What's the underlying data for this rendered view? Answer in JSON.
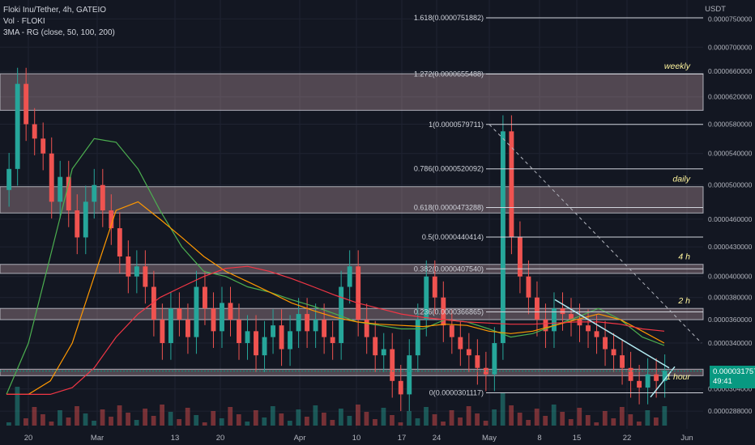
{
  "header": {
    "symbol": "Floki Inu/Tether, 4h, GATEIO",
    "indicator_vol": "Vol · FLOKI",
    "indicator_ma": "3MA - RG (close, 50, 100, 200)"
  },
  "price_axis": {
    "unit": "USDT",
    "current_price": "0.0000317577",
    "countdown": "49:41"
  },
  "colors": {
    "background": "#131722",
    "bull": "#26a69a",
    "bear": "#ef5350",
    "zone": "#f5c6cb",
    "ma50": "#4caf50",
    "ma100": "#ff9800",
    "ma200": "#f23645",
    "trendline": "#b2ebf2",
    "fib": "#d1d4dc",
    "label": "#fff59d",
    "current": "#089981"
  },
  "chart_data": {
    "type": "candlestick",
    "title": "Floki Inu/Tether, 4h, GATEIO",
    "y_unit": "USDT",
    "y_scale": "log",
    "ylim": [
      2.78e-05,
      7.7e-05
    ],
    "y_ticks": [
      "0.0000750000",
      "0.0000700000",
      "0.0000660000",
      "0.0000620000",
      "0.0000580000",
      "0.0000540000",
      "0.0000500000",
      "0.0000460000",
      "0.0000430000",
      "0.0000400000",
      "0.0000380000",
      "0.0000360000",
      "0.0000340000",
      "0.0000304000",
      "0.0000288000"
    ],
    "x_ticks": [
      "20",
      "Mar",
      "13",
      "20",
      "Apr",
      "10",
      "17",
      "24",
      "May",
      "8",
      "15",
      "22",
      "Jun"
    ],
    "fib_levels": [
      {
        "label": "1.618(0.0000751882)",
        "price": 7.51882e-05
      },
      {
        "label": "1.272(0.0000655488)",
        "price": 6.55488e-05
      },
      {
        "label": "1(0.0000579711)",
        "price": 5.79711e-05
      },
      {
        "label": "0.786(0.0000520092)",
        "price": 5.20092e-05
      },
      {
        "label": "0.618(0.0000473288)",
        "price": 4.73288e-05
      },
      {
        "label": "0.5(0.0000440414)",
        "price": 4.40414e-05
      },
      {
        "label": "0.382(0.0000407540)",
        "price": 4.0754e-05
      },
      {
        "label": "0.236(0.0000366865)",
        "price": 3.66865e-05
      },
      {
        "label": "0(0.0000301117)",
        "price": 3.01117e-05
      }
    ],
    "zones": [
      {
        "label": "weekly",
        "from": 6e-05,
        "to": 6.56e-05
      },
      {
        "label": "daily",
        "from": 4.67e-05,
        "to": 4.98e-05
      },
      {
        "label": "4 h",
        "from": 4.03e-05,
        "to": 4.12e-05
      },
      {
        "label": "2 h",
        "from": 3.6e-05,
        "to": 3.7e-05
      },
      {
        "label": "1 hour",
        "from": 3.14e-05,
        "to": 3.19e-05
      }
    ],
    "series": [
      {
        "name": "MA 50",
        "values": [
          3e-05,
          3.4e-05,
          4.2e-05,
          5.2e-05,
          5.6e-05,
          5.55e-05,
          5.2e-05,
          4.7e-05,
          4.3e-05,
          4.05e-05,
          4e-05,
          3.9e-05,
          3.85e-05,
          3.78e-05,
          3.72e-05,
          3.65e-05,
          3.58e-05,
          3.55e-05,
          3.52e-05,
          3.52e-05,
          3.6e-05,
          3.58e-05,
          3.52e-05,
          3.45e-05,
          3.48e-05,
          3.55e-05,
          3.62e-05,
          3.7e-05,
          3.6e-05,
          3.45e-05,
          3.38e-05
        ]
      },
      {
        "name": "MA 100",
        "values": [
          3e-05,
          3e-05,
          3.1e-05,
          3.4e-05,
          4e-05,
          4.7e-05,
          4.8e-05,
          4.6e-05,
          4.4e-05,
          4.2e-05,
          4.05e-05,
          3.95e-05,
          3.85e-05,
          3.75e-05,
          3.68e-05,
          3.62e-05,
          3.58e-05,
          3.56e-05,
          3.55e-05,
          3.54e-05,
          3.56e-05,
          3.55e-05,
          3.5e-05,
          3.48e-05,
          3.5e-05,
          3.55e-05,
          3.6e-05,
          3.65e-05,
          3.6e-05,
          3.5e-05,
          3.4e-05
        ]
      },
      {
        "name": "MA 200",
        "values": [
          3e-05,
          3e-05,
          3e-05,
          3.05e-05,
          3.2e-05,
          3.45e-05,
          3.65e-05,
          3.8e-05,
          3.9e-05,
          4e-05,
          4.08e-05,
          4.1e-05,
          4.05e-05,
          3.98e-05,
          3.9e-05,
          3.82e-05,
          3.75e-05,
          3.7e-05,
          3.65e-05,
          3.62e-05,
          3.6e-05,
          3.58e-05,
          3.57e-05,
          3.56e-05,
          3.56e-05,
          3.57e-05,
          3.58e-05,
          3.58e-05,
          3.56e-05,
          3.52e-05,
          3.5e-05
        ]
      }
    ],
    "candles_close": [
      5.2e-05,
      6.4e-05,
      5.8e-05,
      5.6e-05,
      5.4e-05,
      4.8e-05,
      5.1e-05,
      4.7e-05,
      4.4e-05,
      4.8e-05,
      5e-05,
      4.7e-05,
      4.5e-05,
      4.2e-05,
      4e-05,
      4.1e-05,
      3.9e-05,
      3.6e-05,
      3.4e-05,
      3.7e-05,
      3.6e-05,
      3.45e-05,
      3.9e-05,
      3.7e-05,
      3.5e-05,
      3.75e-05,
      3.6e-05,
      3.4e-05,
      3.5e-05,
      3.3e-05,
      3.45e-05,
      3.55e-05,
      3.35e-05,
      3.5e-05,
      3.65e-05,
      3.5e-05,
      3.6e-05,
      3.45e-05,
      3.4e-05,
      3.9e-05,
      4.1e-05,
      3.6e-05,
      3.45e-05,
      3.3e-05,
      3.35e-05,
      3.1e-05,
      3e-05,
      3.3e-05,
      3.6e-05,
      4e-05,
      3.8e-05,
      3.55e-05,
      3.45e-05,
      3.35e-05,
      3.3e-05,
      3.2e-05,
      3.15e-05,
      3.4e-05,
      5.7e-05,
      4.4e-05,
      4e-05,
      3.8e-05,
      3.6e-05,
      3.5e-05,
      3.7e-05,
      3.65e-05,
      3.6e-05,
      3.55e-05,
      3.5e-05,
      3.45e-05,
      3.35e-05,
      3.3e-05,
      3.2e-05,
      3.1e-05,
      3.05e-05,
      3.15e-05,
      3.1e-05,
      3.18e-05
    ]
  }
}
